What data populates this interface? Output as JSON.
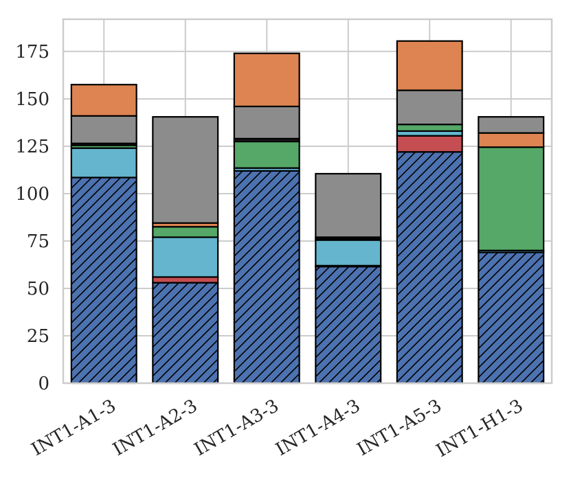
{
  "chart_data": {
    "type": "bar",
    "stacked": true,
    "title": "",
    "xlabel": "",
    "ylabel": "",
    "ylim": [
      0,
      192
    ],
    "yticks": [
      0,
      25,
      50,
      75,
      100,
      125,
      150,
      175
    ],
    "grid": true,
    "categories": [
      "INT1-A1-3",
      "INT1-A2-3",
      "INT1-A3-3",
      "INT1-A4-3",
      "INT1-A5-3",
      "INT1-H1-3"
    ],
    "series": [
      {
        "name": "blue (hatched)",
        "color": "#4c72b0",
        "hatch": true,
        "values": [
          108.5,
          53.0,
          112.0,
          61.5,
          122.0,
          69.0
        ]
      },
      {
        "name": "red",
        "color": "#c44e52",
        "hatch": false,
        "values": [
          0.0,
          3.0,
          0.0,
          0.5,
          8.5,
          0.0
        ]
      },
      {
        "name": "cyan",
        "color": "#64b5cd",
        "hatch": false,
        "values": [
          15.5,
          21.0,
          1.5,
          13.5,
          2.5,
          1.0
        ]
      },
      {
        "name": "green",
        "color": "#55a868",
        "hatch": false,
        "values": [
          1.5,
          5.5,
          14.0,
          0.5,
          3.5,
          54.5
        ]
      },
      {
        "name": "black",
        "color": "#1a1a1a",
        "hatch": false,
        "values": [
          1.0,
          0.0,
          1.5,
          1.0,
          0.0,
          0.0
        ]
      },
      {
        "name": "orange",
        "color": "#dd8452",
        "hatch": false,
        "values": [
          0.0,
          2.0,
          0.0,
          0.0,
          0.0,
          7.5
        ]
      },
      {
        "name": "gray",
        "color": "#8c8c8c",
        "hatch": false,
        "values": [
          14.5,
          56.0,
          17.0,
          33.5,
          18.0,
          8.5
        ]
      },
      {
        "name": "orange top",
        "color": "#dd8452",
        "hatch": false,
        "values": [
          16.5,
          0.0,
          28.0,
          0.0,
          26.0,
          0.0
        ]
      }
    ]
  }
}
